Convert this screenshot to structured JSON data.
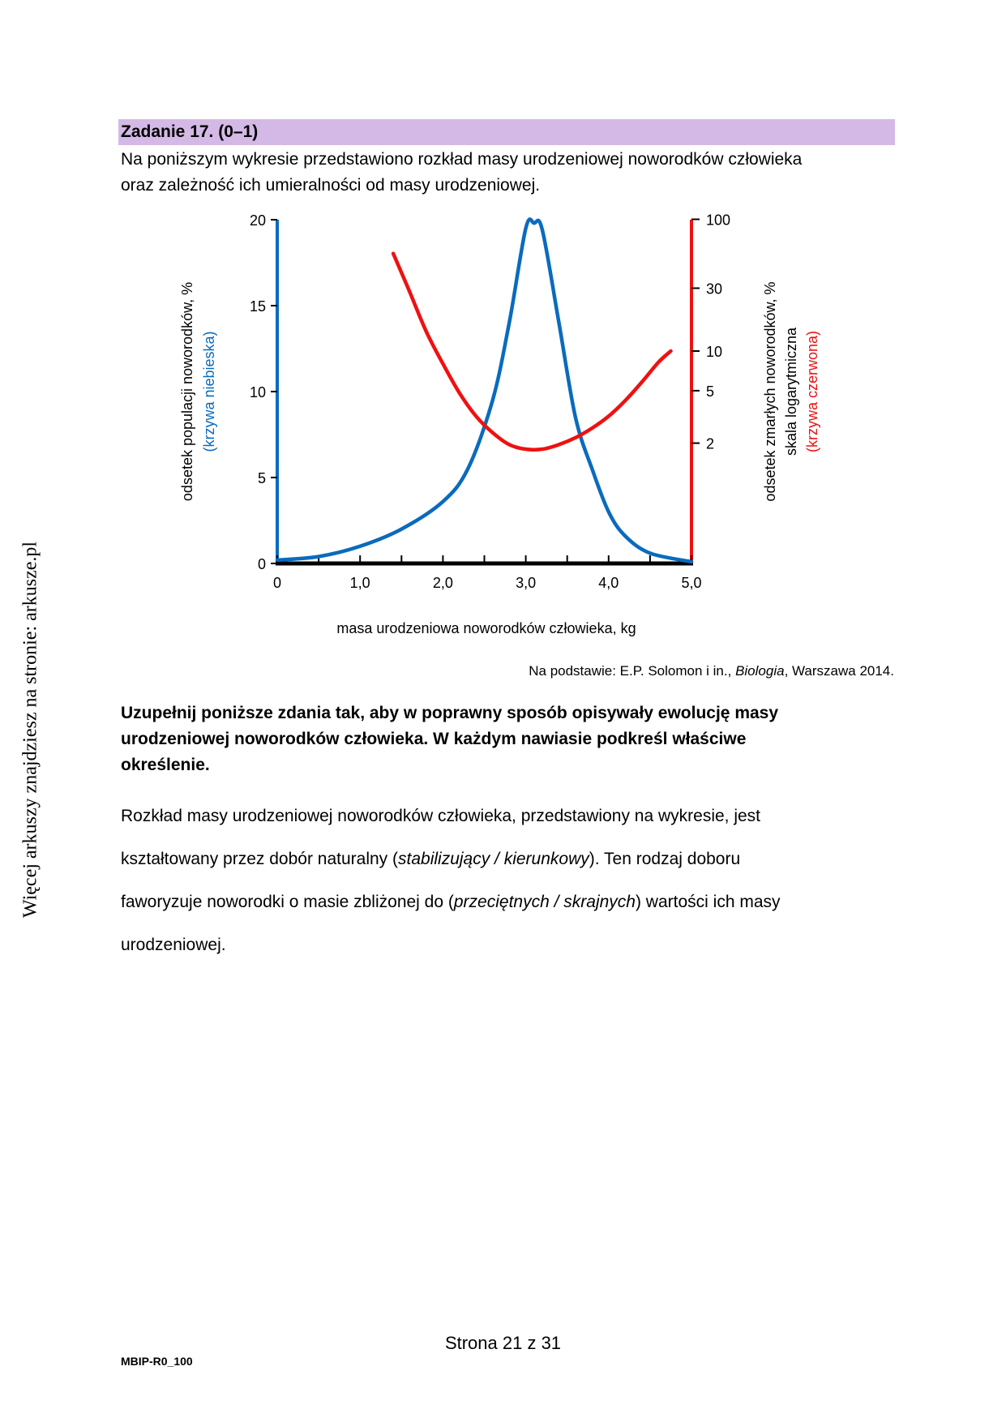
{
  "side_note": "Więcej arkuszy znajdziesz na stronie: arkusze.pl",
  "header": {
    "title": "Zadanie 17. (0–1)"
  },
  "intro": {
    "line1": "Na poniższym wykresie przedstawiono rozkład masy urodzeniowej noworodków człowieka",
    "line2": "oraz zależność ich umieralności od masy urodzeniowej."
  },
  "chart_data": {
    "type": "line",
    "xlabel": "masa urodzeniowa noworodków człowieka, kg",
    "x_ticks": [
      "0",
      "1,0",
      "2,0",
      "3,0",
      "4,0",
      "5,0"
    ],
    "x_range": [
      0,
      5
    ],
    "left_axis": {
      "label_line1": "odsetek populacji noworodków, %",
      "label_line2": "(krzywa niebieska)",
      "ticks": [
        "20",
        "15",
        "10",
        "5",
        "0"
      ],
      "range": [
        0,
        20
      ],
      "color": "#0a6bbd"
    },
    "right_axis": {
      "label_line1": "odsetek zmarłych noworodków, %",
      "label_line2": "skala logarytmiczna",
      "label_line3": "(krzywa czerwona)",
      "ticks": [
        "100",
        "30",
        "10",
        "5",
        "2"
      ],
      "scale": "log",
      "color": "#ee1111"
    },
    "series": [
      {
        "color": "#0a6bbd",
        "x": [
          0,
          0.5,
          1.0,
          1.5,
          2.0,
          2.3,
          2.6,
          2.8,
          3.0,
          3.1,
          3.2,
          3.4,
          3.6,
          3.8,
          4.0,
          4.2,
          4.5,
          5.0
        ],
        "y": [
          0.2,
          0.4,
          1.0,
          2.0,
          3.6,
          5.5,
          9.5,
          14.0,
          19.5,
          19.8,
          19.4,
          14.0,
          8.5,
          5.5,
          3.0,
          1.6,
          0.6,
          0.1
        ]
      },
      {
        "color": "#ee1111",
        "x": [
          1.4,
          1.6,
          1.8,
          2.0,
          2.2,
          2.4,
          2.6,
          2.8,
          3.0,
          3.2,
          3.4,
          3.6,
          3.8,
          4.0,
          4.2,
          4.4,
          4.6,
          4.75
        ],
        "y": [
          55,
          28,
          14,
          8,
          4.8,
          3.2,
          2.4,
          1.95,
          1.8,
          1.8,
          1.95,
          2.2,
          2.6,
          3.2,
          4.2,
          5.8,
          8.2,
          10
        ]
      }
    ]
  },
  "source": {
    "prefix": "Na podstawie: E.P. Solomon i in., ",
    "title": "Biologia",
    "suffix": ", Warszawa 2014."
  },
  "instruction": {
    "line1": "Uzupełnij poniższe zdania tak, aby w poprawny sposób opisywały ewolucję masy",
    "line2": "urodzeniowej noworodków człowieka. W każdym nawiasie podkreśl właściwe",
    "line3": "określenie."
  },
  "body": {
    "line1": "Rozkład masy urodzeniowej noworodków człowieka, przedstawiony na wykresie, jest",
    "line2_a": "kształtowany przez dobór naturalny (",
    "line2_opts": "stabilizujący / kierunkowy",
    "line2_b": "). Ten rodzaj doboru",
    "line3_a": "faworyzuje noworodki o masie zbliżonej do (",
    "line3_opts": "przeciętnych / skrajnych",
    "line3_b": ") wartości ich masy",
    "line4": "urodzeniowej."
  },
  "footer": {
    "page": "Strona 21 z 31",
    "code": "MBIP-R0_100"
  }
}
